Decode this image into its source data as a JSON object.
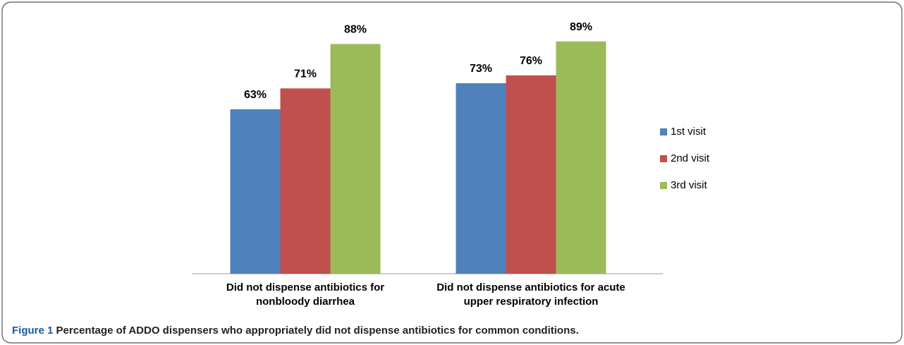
{
  "chart_data": {
    "type": "bar",
    "categories": [
      "Did not dispense antibiotics for nonbloody diarrhea",
      "Did not dispense antibiotics for acute upper respiratory infection"
    ],
    "series": [
      {
        "name": "1st visit",
        "color": "#4f81bd",
        "values": [
          63,
          73
        ],
        "value_labels": [
          "63%",
          "73%"
        ]
      },
      {
        "name": "2nd visit",
        "color": "#c0504d",
        "values": [
          71,
          76
        ],
        "value_labels": [
          "71%",
          "76%"
        ]
      },
      {
        "name": "3rd visit",
        "color": "#9bbb59",
        "values": [
          88,
          89
        ],
        "value_labels": [
          "88%",
          "89%"
        ]
      }
    ],
    "ylim": [
      0,
      100
    ],
    "grid": false,
    "legend": "right"
  },
  "caption": {
    "label": "Figure 1",
    "text": "Percentage of ADDO dispensers who appropriately did not dispense antibiotics for common conditions."
  }
}
